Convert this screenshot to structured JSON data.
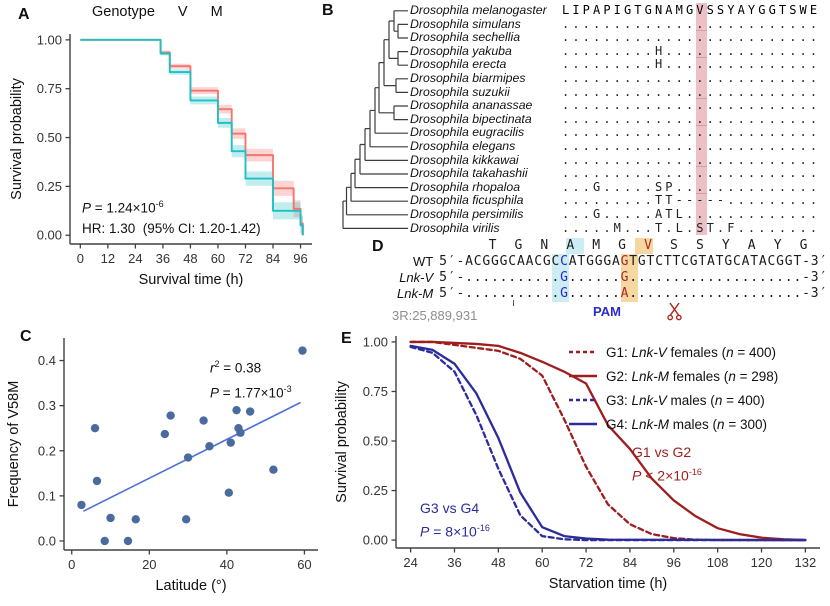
{
  "colors": {
    "cyan": "#1fc0c4",
    "cyan_ribbon": "rgba(31,192,196,0.28)",
    "salmon": "#f4756d",
    "salmon_ribbon": "rgba(244,117,109,0.30)",
    "dark_red": "#9e1d1d",
    "dark_blue": "#2b2b9b",
    "scatter_point": "#4a6b9e",
    "fit_line": "#4e72d4",
    "axis": "#404040",
    "band_pink": "rgba(203,92,108,0.38)",
    "cyan_bg": "#cdedf5",
    "orange_bg": "#f5d7a2",
    "nt_blue": "#2727c8",
    "nt_red": "#b02820",
    "coord_gray": "#8d8d8d"
  },
  "chart_data": [
    {
      "id": "panelA",
      "type": "line",
      "subtype": "kaplan-meier-step",
      "xlabel": "Survival time (h)",
      "ylabel": "Survival probability",
      "xlim": [
        0,
        96
      ],
      "ylim": [
        0,
        1
      ],
      "grid": false,
      "legend_position": "top",
      "xticks": [
        0,
        12,
        24,
        36,
        48,
        60,
        72,
        84,
        96
      ],
      "xticklabels": [
        "0",
        "12",
        "24",
        "36",
        "48",
        "60",
        "72",
        "84",
        "96"
      ],
      "yticks": [
        0,
        0.25,
        0.5,
        0.75,
        1.0
      ],
      "yticklabels": [
        "0.00",
        "0.25",
        "0.50",
        "0.75",
        "1.00"
      ],
      "legend_title": "Genotype",
      "series": [
        {
          "name": "M",
          "color": "#f4756d",
          "ribbon": "rgba(244,117,109,0.30)",
          "steps": [
            [
              0,
              1
            ],
            [
              35,
              1
            ],
            [
              35,
              0.935
            ],
            [
              39,
              0.935
            ],
            [
              39,
              0.865
            ],
            [
              48,
              0.865
            ],
            [
              48,
              0.74
            ],
            [
              60,
              0.74
            ],
            [
              60,
              0.645
            ],
            [
              66,
              0.645
            ],
            [
              66,
              0.52
            ],
            [
              72,
              0.52
            ],
            [
              72,
              0.41
            ],
            [
              84,
              0.41
            ],
            [
              84,
              0.24
            ],
            [
              93,
              0.24
            ],
            [
              93,
              0.135
            ],
            [
              96,
              0.135
            ],
            [
              96,
              0.06
            ],
            [
              97,
              0.06
            ],
            [
              97,
              0
            ]
          ]
        },
        {
          "name": "V",
          "color": "#1fc0c4",
          "ribbon": "rgba(31,192,196,0.28)",
          "steps": [
            [
              0,
              1
            ],
            [
              35,
              1
            ],
            [
              35,
              0.93
            ],
            [
              39,
              0.93
            ],
            [
              39,
              0.835
            ],
            [
              48,
              0.835
            ],
            [
              48,
              0.69
            ],
            [
              60,
              0.69
            ],
            [
              60,
              0.575
            ],
            [
              66,
              0.575
            ],
            [
              66,
              0.43
            ],
            [
              72,
              0.43
            ],
            [
              72,
              0.29
            ],
            [
              84,
              0.29
            ],
            [
              84,
              0.125
            ],
            [
              96,
              0.125
            ],
            [
              96,
              0.05
            ],
            [
              97,
              0.05
            ],
            [
              97,
              0
            ]
          ]
        }
      ]
    },
    {
      "id": "panelC",
      "type": "scatter",
      "xlabel": "Latitude (°)",
      "ylabel": "Frequency of V58M",
      "xlim": [
        0,
        60
      ],
      "ylim": [
        0,
        0.4
      ],
      "grid": false,
      "xticks": [
        0,
        20,
        40,
        60
      ],
      "xticklabels": [
        "0",
        "20",
        "40",
        "60"
      ],
      "yticks": [
        0,
        0.1,
        0.2,
        0.3,
        0.4
      ],
      "yticklabels": [
        "0.0",
        "0.1",
        "0.2",
        "0.3",
        "0.4"
      ],
      "point_color": "#4a6b9e",
      "points": [
        [
          2.5,
          0.08
        ],
        [
          6,
          0.25
        ],
        [
          6.5,
          0.133
        ],
        [
          8.5,
          0.0
        ],
        [
          10,
          0.051
        ],
        [
          14.5,
          0.0
        ],
        [
          16.5,
          0.048
        ],
        [
          24,
          0.237
        ],
        [
          25.5,
          0.278
        ],
        [
          29.5,
          0.048
        ],
        [
          30,
          0.185
        ],
        [
          34,
          0.267
        ],
        [
          35.5,
          0.21
        ],
        [
          40.5,
          0.107
        ],
        [
          41,
          0.218
        ],
        [
          42.5,
          0.29
        ],
        [
          43,
          0.25
        ],
        [
          43.5,
          0.24
        ],
        [
          46,
          0.287
        ],
        [
          52,
          0.158
        ],
        [
          59.5,
          0.422
        ]
      ],
      "fit_line": {
        "x1": 3,
        "y1": 0.066,
        "x2": 59,
        "y2": 0.307,
        "color": "#4e72d4"
      },
      "r_squared": 0.38,
      "p_value": "1.77×10-3"
    },
    {
      "id": "panelE",
      "type": "line",
      "xlabel": "Starvation time (h)",
      "ylabel": "Survival probability",
      "xlim": [
        24,
        132
      ],
      "ylim": [
        0,
        1
      ],
      "grid": false,
      "legend_position": "upper right",
      "xticks": [
        24,
        36,
        48,
        60,
        72,
        84,
        96,
        108,
        120,
        132
      ],
      "xticklabels": [
        "24",
        "36",
        "48",
        "60",
        "72",
        "84",
        "96",
        "108",
        "120",
        "132"
      ],
      "yticks": [
        0,
        0.25,
        0.5,
        0.75,
        1.0
      ],
      "yticklabels": [
        "0.00",
        "0.25",
        "0.50",
        "0.75",
        "1.00"
      ],
      "series": [
        {
          "name": "G1: Lnk-V females (n = 400)",
          "color": "#9e1d1d",
          "dash": true,
          "x": [
            24,
            30,
            36,
            42,
            48,
            54,
            60,
            66,
            72,
            78,
            84,
            90,
            96,
            102,
            108,
            132
          ],
          "y": [
            1.0,
            1.0,
            0.985,
            0.97,
            0.955,
            0.915,
            0.83,
            0.61,
            0.37,
            0.18,
            0.08,
            0.03,
            0.01,
            0.002,
            0,
            0
          ]
        },
        {
          "name": "G2: Lnk-M females (n = 298)",
          "color": "#9e1d1d",
          "dash": false,
          "x": [
            24,
            30,
            36,
            42,
            48,
            54,
            60,
            66,
            72,
            78,
            84,
            90,
            96,
            102,
            108,
            114,
            120,
            126,
            132
          ],
          "y": [
            1.0,
            1.0,
            0.995,
            0.99,
            0.98,
            0.945,
            0.9,
            0.85,
            0.79,
            0.58,
            0.46,
            0.31,
            0.2,
            0.12,
            0.06,
            0.03,
            0.012,
            0.004,
            0
          ]
        },
        {
          "name": "G3: Lnk-V males (n = 400)",
          "color": "#2b2b9b",
          "dash": true,
          "x": [
            24,
            30,
            36,
            42,
            48,
            54,
            60,
            66,
            72,
            132
          ],
          "y": [
            0.975,
            0.945,
            0.85,
            0.63,
            0.36,
            0.125,
            0.02,
            0.004,
            0,
            0
          ]
        },
        {
          "name": "G4: Lnk-M males (n = 300)",
          "color": "#2b2b9b",
          "dash": false,
          "x": [
            24,
            30,
            36,
            42,
            48,
            54,
            60,
            66,
            72,
            78,
            132
          ],
          "y": [
            0.98,
            0.96,
            0.89,
            0.74,
            0.515,
            0.24,
            0.065,
            0.02,
            0.008,
            0.002,
            0
          ]
        }
      ]
    }
  ],
  "panelA": {
    "label": "A",
    "legend_title": "Genotype",
    "legend": [
      {
        "label": "V",
        "line": "#1fc0c4",
        "fill": "#bdeaec"
      },
      {
        "label": "M",
        "line": "#f4756d",
        "fill": "#fbd3cf"
      }
    ],
    "p_var": "P",
    "p_mid": " = 1.24×10",
    "p_exp": "-6",
    "hr_text": "HR: 1.30  (95% CI: 1.20-1.42)"
  },
  "panelB": {
    "label": "B",
    "highlight_col": 13,
    "species": [
      "Drosophila melanogaster",
      "Drosophila simulans",
      "Drosophila sechellia",
      "Drosophila yakuba",
      "Drosophila erecta",
      "Drosophila biarmipes",
      "Drosophila suzukii",
      "Drosophila ananassae",
      "Drosophila bipectinata",
      "Drosophila eugracilis",
      "Drosophila elegans",
      "Drosophila kikkawai",
      "Drosophila takahashii",
      "Drosophila rhopaloa",
      "Drosophila ficusphila",
      "Drosophila persimilis",
      "Drosophila virilis"
    ],
    "sequences": [
      "LIPAPIGTGNAMGVSSYAYGGTSWE",
      ".........................",
      ".........................",
      ".........H...............",
      ".........H...............",
      ".........................",
      ".........................",
      ".........................",
      ".........................",
      ".........................",
      ".........................",
      ".........................",
      ".........................",
      "...G.....SP..............",
      ".........TT-----.........",
      "...G.....ATL.............",
      ".....M...T.L.ST.F........"
    ]
  },
  "panelC": {
    "label": "C",
    "r_var": "r",
    "r_sup": "2",
    "r_mid": " = 0.38",
    "p_var": "P",
    "p_mid": " = 1.77×10",
    "p_exp": "-3"
  },
  "panelD": {
    "label": "D",
    "aa_row": "    T  G  N  A  M  G  V  S  S  Y  A  Y  G",
    "rows": [
      {
        "label": "WT",
        "italic": false,
        "seq": "5′-ACGGGCAACGCCATGGGAGTGTCTTCGTATGCATACGGT-3′"
      },
      {
        "label": "Lnk-V",
        "italic": true,
        "seq": "5′-...........G......G....................-3′"
      },
      {
        "label": "Lnk-M",
        "italic": true,
        "seq": "5′-...........G......A....................-3′"
      }
    ],
    "cyan_cols": [
      13,
      14
    ],
    "orange_cols": [
      21,
      22
    ],
    "blue_col": 14,
    "red_col": 21,
    "aa_red_col": 22,
    "pam_label": "PAM",
    "coord_label": "3R:25,889,931"
  },
  "panelE": {
    "label": "E",
    "legend": [
      {
        "prefix": "G1: ",
        "gene": "Lnk-V",
        "mid": " females (",
        "nvar": "n",
        "suffix": " = 400)",
        "color": "#9e1d1d",
        "dash": true
      },
      {
        "prefix": "G2: ",
        "gene": "Lnk-M",
        "mid": " females (",
        "nvar": "n",
        "suffix": " = 298)",
        "color": "#9e1d1d",
        "dash": false
      },
      {
        "prefix": "G3: ",
        "gene": "Lnk-V",
        "mid": " males (",
        "nvar": "n",
        "suffix": " = 400)",
        "color": "#2b2b9b",
        "dash": true
      },
      {
        "prefix": "G4: ",
        "gene": "Lnk-M",
        "mid": " males (",
        "nvar": "n",
        "suffix": " = 300)",
        "color": "#2b2b9b",
        "dash": false
      }
    ],
    "ann_red": {
      "line1": "G1 vs G2",
      "p_var": "P",
      "p_mid": " < 2×10",
      "p_exp": "-16",
      "color": "#9e1d1d"
    },
    "ann_blue": {
      "line1": "G3 vs G4",
      "p_var": "P",
      "p_mid": " = 8×10",
      "p_exp": "-16",
      "color": "#2b2b9b"
    }
  }
}
